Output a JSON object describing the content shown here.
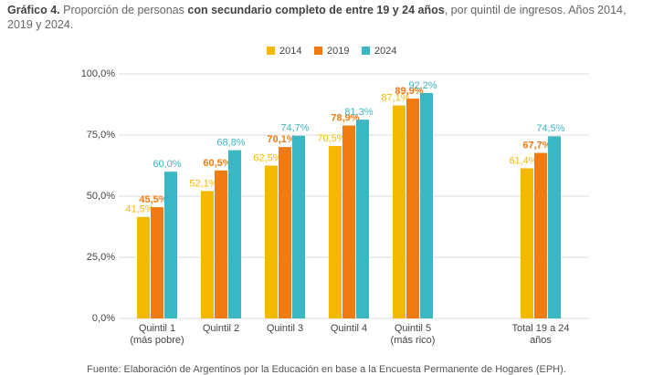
{
  "chart_data": {
    "type": "bar",
    "title": {
      "label": "Gráfico 4.",
      "before": "Proporción de personas",
      "bold": "con secundario completo de entre 19 y 24 años",
      "after": ", por quintil de ingresos. Años 2014, 2019 y 2024."
    },
    "source": "Fuente: Elaboración de Argentinos por la Educación en base a la Encuesta Permanente de Hogares (EPH).",
    "categories": [
      "Quintil 1\n(más pobre)",
      "Quintil 2",
      "Quintil 3",
      "Quintil 4",
      "Quintil 5\n(más rico)",
      null,
      "Total 19 a 24\naños"
    ],
    "series": [
      {
        "name": "2014",
        "color": "#f5b800",
        "values": [
          41.5,
          52.1,
          62.5,
          70.5,
          87.1,
          null,
          61.4
        ],
        "value_labels": [
          "41,5%",
          "52,1%",
          "62,5%",
          "70,5%",
          "87,1%",
          null,
          "61,4%"
        ]
      },
      {
        "name": "2019",
        "color": "#f07b12",
        "values": [
          45.5,
          60.5,
          70.1,
          78.9,
          89.9,
          null,
          67.7
        ],
        "value_labels": [
          "45,5%",
          "60,5%",
          "70,1%",
          "78,9%",
          "89,9%",
          null,
          "67,7%"
        ]
      },
      {
        "name": "2024",
        "color": "#3bb7c4",
        "values": [
          60.0,
          68.8,
          74.7,
          81.3,
          92.2,
          null,
          74.5
        ],
        "value_labels": [
          "60,0%",
          "68,8%",
          "74,7%",
          "81,3%",
          "92,2%",
          null,
          "74,5%"
        ]
      }
    ],
    "ylim": [
      0,
      100
    ],
    "yticks": [
      {
        "value": 0,
        "label": "0,0%"
      },
      {
        "value": 25,
        "label": "25,0%"
      },
      {
        "value": 50,
        "label": "50,0%"
      },
      {
        "value": 75,
        "label": "75,0%"
      },
      {
        "value": 100,
        "label": "100,0%"
      }
    ],
    "grid": true
  }
}
